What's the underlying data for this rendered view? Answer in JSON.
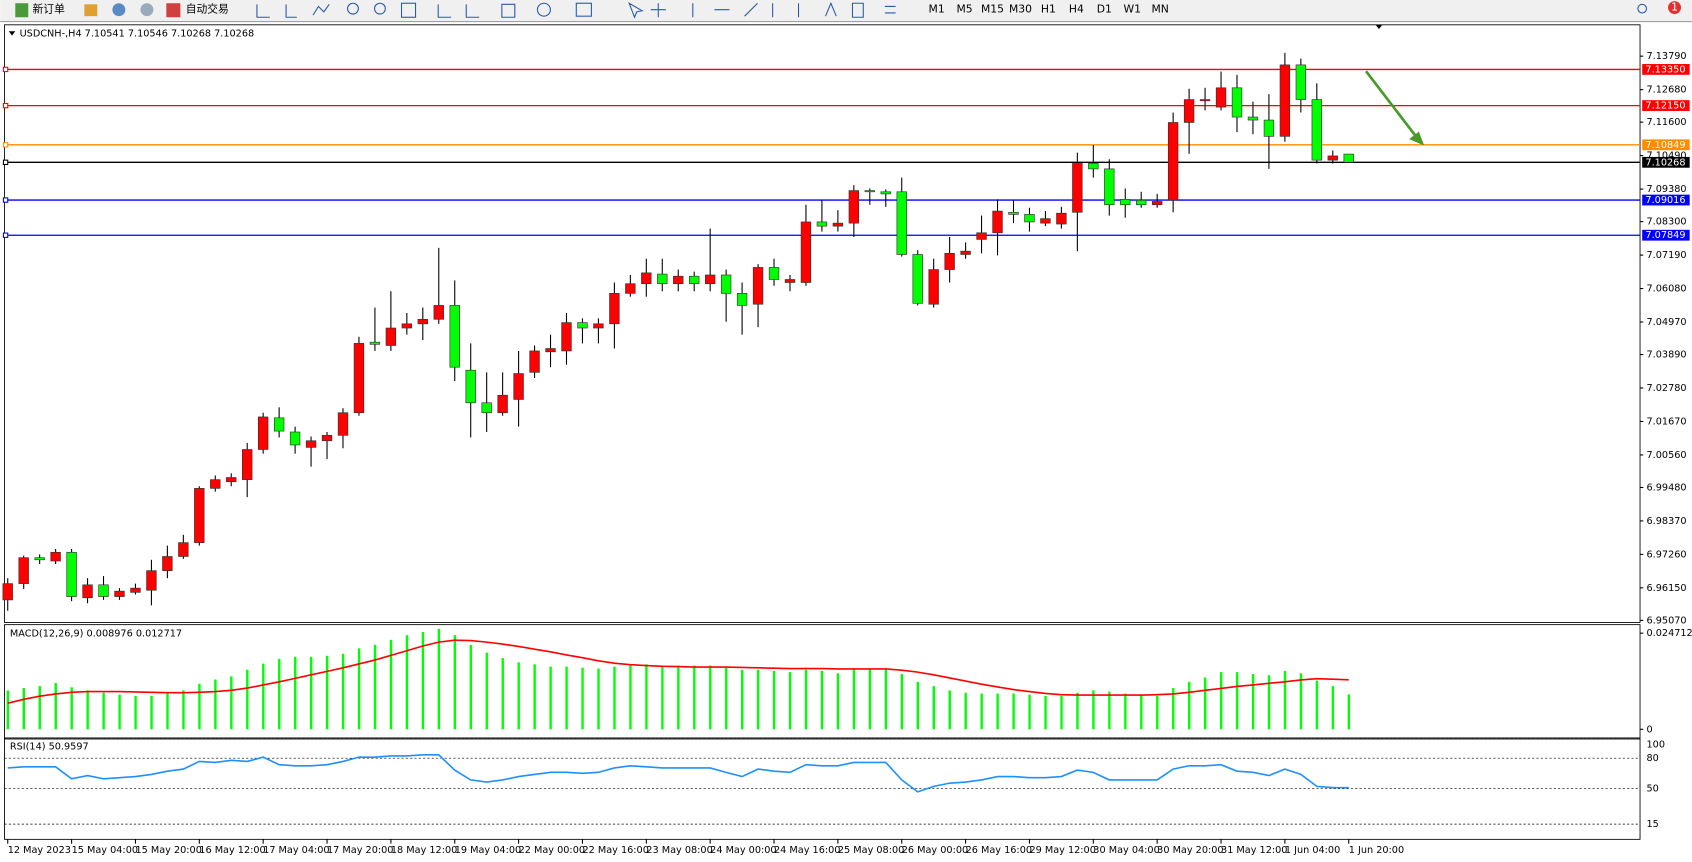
{
  "toolbar": {
    "new_order": "新订单",
    "auto_trading": "自动交易",
    "timeframes": [
      "M1",
      "M5",
      "M15",
      "M30",
      "H1",
      "H4",
      "D1",
      "W1",
      "MN"
    ],
    "badge": "1"
  },
  "chart_data": [
    {
      "type": "candlestick",
      "title": "USDCNH-,H4  7.10541 7.10546 7.10268 7.10268",
      "categories": [
        "12 May 2023",
        null,
        null,
        null,
        "15 May 04:00",
        null,
        null,
        null,
        "15 May 20:00",
        null,
        null,
        null,
        "16 May 12:00",
        null,
        null,
        null,
        "17 May 04:00",
        null,
        null,
        null,
        "17 May 20:00",
        null,
        null,
        null,
        "18 May 12:00",
        null,
        null,
        null,
        "19 May 04:00",
        null,
        null,
        null,
        "22 May 00:00",
        null,
        null,
        null,
        "22 May 16:00",
        null,
        null,
        null,
        "23 May 08:00",
        null,
        null,
        null,
        "24 May 00:00",
        null,
        null,
        null,
        "24 May 16:00",
        null,
        null,
        null,
        "25 May 08:00",
        null,
        null,
        null,
        "26 May 00:00",
        null,
        null,
        null,
        "26 May 16:00",
        null,
        null,
        null,
        "29 May 12:00",
        null,
        null,
        null,
        "30 May 04:00",
        null,
        null,
        null,
        "30 May 20:00",
        null,
        null,
        null,
        "31 May 12:00",
        null,
        null,
        null,
        "1 Jun 04:00",
        null,
        null,
        null,
        "1 Jun 20:00"
      ],
      "open": [
        6.9575,
        6.9629,
        6.9715,
        6.9704,
        6.9733,
        6.9582,
        6.9625,
        6.9586,
        6.96,
        6.9607,
        6.9672,
        6.9719,
        6.9765,
        6.9945,
        6.9967,
        6.9974,
        7.0074,
        7.0179,
        7.0132,
        7.0081,
        7.0103,
        7.0121,
        7.0196,
        7.043,
        7.0419,
        7.0477,
        7.0491,
        7.0506,
        7.0552,
        7.0337,
        7.0229,
        7.0196,
        7.024,
        7.033,
        7.0398,
        7.0401,
        7.0495,
        7.0477,
        7.0491,
        7.0592,
        7.0624,
        7.0656,
        7.0624,
        7.0649,
        7.0624,
        7.0653,
        7.0592,
        7.0556,
        7.0678,
        7.0628,
        7.0628,
        7.0829,
        7.0815,
        7.0825,
        7.0933,
        7.0929,
        7.0929,
        7.0721,
        7.0556,
        7.0671,
        7.0721,
        7.0771,
        7.0793,
        7.0861,
        7.0854,
        7.0825,
        7.0822,
        7.0861,
        7.1023,
        7.1005,
        7.0904,
        7.0901,
        7.0886,
        7.0901,
        7.1159,
        7.1231,
        7.121,
        7.1274,
        7.1177,
        7.1167,
        7.1113,
        7.135,
        7.1235,
        7.1034,
        7.10541
      ],
      "high": [
        6.9647,
        6.9722,
        6.9726,
        6.9744,
        6.9744,
        6.9647,
        6.9654,
        6.9614,
        6.9629,
        6.9708,
        6.9755,
        6.9791,
        6.9952,
        6.9988,
        6.9995,
        7.0096,
        7.0196,
        7.0214,
        7.015,
        7.0117,
        7.0132,
        7.0211,
        7.0448,
        7.0545,
        7.0599,
        7.0527,
        7.0545,
        7.0743,
        7.0635,
        7.0426,
        7.033,
        7.033,
        7.0401,
        7.0419,
        7.0455,
        7.0527,
        7.0509,
        7.0509,
        7.0628,
        7.0653,
        7.0707,
        7.0707,
        7.0671,
        7.0664,
        7.0807,
        7.0671,
        7.0628,
        7.0689,
        7.0707,
        7.0653,
        7.0886,
        7.0901,
        7.0868,
        7.0951,
        7.094,
        7.0937,
        7.0976,
        7.0735,
        7.0707,
        7.0779,
        7.0761,
        7.085,
        7.0904,
        7.0901,
        7.0876,
        7.0865,
        7.0879,
        7.1059,
        7.1084,
        7.1037,
        7.094,
        7.0929,
        7.0922,
        7.1192,
        7.1271,
        7.1274,
        7.1328,
        7.1317,
        7.1228,
        7.1253,
        7.139,
        7.1371,
        7.1289,
        7.1066,
        7.10546
      ],
      "low": [
        6.9539,
        6.9611,
        6.9694,
        6.9694,
        6.9571,
        6.9564,
        6.9575,
        6.9575,
        6.9593,
        6.9557,
        6.9647,
        6.9711,
        6.9755,
        6.9934,
        6.9952,
        6.9916,
        7.006,
        7.0114,
        7.006,
        7.0017,
        7.0042,
        7.0078,
        7.0186,
        7.0401,
        7.0401,
        7.0455,
        7.0437,
        7.0491,
        7.0301,
        7.0114,
        7.0132,
        7.0186,
        7.015,
        7.0311,
        7.0347,
        7.0355,
        7.0426,
        7.0426,
        7.0409,
        7.0581,
        7.0581,
        7.0599,
        7.0599,
        7.0599,
        7.0599,
        7.0498,
        7.0455,
        7.048,
        7.0617,
        7.0599,
        7.0617,
        7.0797,
        7.0797,
        7.0779,
        7.0886,
        7.0879,
        7.0714,
        7.0552,
        7.0545,
        7.0628,
        7.0707,
        7.0725,
        7.0718,
        7.0825,
        7.0797,
        7.0815,
        7.0807,
        7.0732,
        7.0976,
        7.085,
        7.0843,
        7.0876,
        7.0876,
        7.0861,
        7.1055,
        7.1199,
        7.1199,
        7.1127,
        7.112,
        7.1005,
        7.1095,
        7.1192,
        7.1023,
        7.1023,
        7.10268
      ],
      "close": [
        6.9629,
        6.9715,
        6.9708,
        6.9733,
        6.9586,
        6.9625,
        6.9586,
        6.9604,
        6.9614,
        6.9672,
        6.9719,
        6.9765,
        6.9945,
        6.9974,
        6.9981,
        7.0074,
        7.0182,
        7.0135,
        7.0089,
        7.0103,
        7.0121,
        7.0196,
        7.0426,
        7.0423,
        7.0477,
        7.0491,
        7.0506,
        7.0552,
        7.0347,
        7.0229,
        7.0196,
        7.0254,
        7.0326,
        7.0401,
        7.0409,
        7.0495,
        7.0477,
        7.0491,
        7.0592,
        7.0624,
        7.066,
        7.0624,
        7.0649,
        7.0624,
        7.0653,
        7.0592,
        7.0552,
        7.0678,
        7.0638,
        7.0638,
        7.0829,
        7.0815,
        7.0825,
        7.0933,
        7.0929,
        7.0922,
        7.0721,
        7.0559,
        7.0671,
        7.0725,
        7.0732,
        7.0793,
        7.0865,
        7.0854,
        7.0829,
        7.084,
        7.0858,
        7.1023,
        7.1005,
        7.0886,
        7.0886,
        7.0886,
        7.0897,
        7.1159,
        7.1235,
        7.1235,
        7.1274,
        7.1177,
        7.1167,
        7.1113,
        7.135,
        7.1235,
        7.1034,
        7.1048,
        7.10268
      ],
      "up_color": "#ff0000",
      "down_color": "#00ff00",
      "wick_color": "#000000",
      "ylim": [
        6.95,
        7.1483
      ],
      "yticks": [
        {
          "value": 7.1379,
          "label": "7.13790"
        },
        {
          "value": 7.1268,
          "label": "7.12680"
        },
        {
          "value": 7.116,
          "label": "7.11600"
        },
        {
          "value": 7.1049,
          "label": "7.10490"
        },
        {
          "value": 7.0938,
          "label": "7.09380"
        },
        {
          "value": 7.083,
          "label": "7.08300"
        },
        {
          "value": 7.0719,
          "label": "7.07190"
        },
        {
          "value": 7.0608,
          "label": "7.06080"
        },
        {
          "value": 7.0497,
          "label": "7.04970"
        },
        {
          "value": 7.0389,
          "label": "7.03890"
        },
        {
          "value": 7.0278,
          "label": "7.02780"
        },
        {
          "value": 7.0167,
          "label": "7.01670"
        },
        {
          "value": 7.0056,
          "label": "7.00560"
        },
        {
          "value": 6.9948,
          "label": "6.99480"
        },
        {
          "value": 6.9837,
          "label": "6.98370"
        },
        {
          "value": 6.9726,
          "label": "6.97260"
        },
        {
          "value": 6.9615,
          "label": "6.96150"
        },
        {
          "value": 6.9507,
          "label": "6.95070"
        }
      ],
      "levels": [
        {
          "value": 7.1335,
          "label": "7.13350",
          "color": "#ff0000"
        },
        {
          "value": 7.1215,
          "label": "7.12150",
          "color": "#ff0000"
        },
        {
          "value": 7.10849,
          "label": "7.10849",
          "color": "#ff8c00"
        },
        {
          "value": 7.10268,
          "label": "7.10268",
          "color": "#000000"
        },
        {
          "value": 7.09016,
          "label": "7.09016",
          "color": "#0000ff"
        },
        {
          "value": 7.07849,
          "label": "7.07849",
          "color": "#0000ff"
        }
      ]
    },
    {
      "type": "macd",
      "title": "MACD(12,26,9) 0.008976 0.012717",
      "series": [
        {
          "style": "bar",
          "color": "#00ff00",
          "values": [
            0.01,
            0.0106,
            0.0111,
            0.0119,
            0.0108,
            0.01,
            0.0094,
            0.0089,
            0.0086,
            0.0086,
            0.0092,
            0.01,
            0.0117,
            0.0128,
            0.0136,
            0.0153,
            0.0169,
            0.0181,
            0.0186,
            0.0186,
            0.0189,
            0.0194,
            0.0208,
            0.0217,
            0.023,
            0.0242,
            0.025,
            0.0258,
            0.0242,
            0.0217,
            0.0197,
            0.0183,
            0.0172,
            0.0167,
            0.0161,
            0.0161,
            0.0158,
            0.0156,
            0.0161,
            0.0164,
            0.0167,
            0.0164,
            0.0164,
            0.0164,
            0.0164,
            0.0158,
            0.0153,
            0.0153,
            0.015,
            0.0147,
            0.0153,
            0.015,
            0.0144,
            0.0156,
            0.0156,
            0.0156,
            0.0142,
            0.0122,
            0.0111,
            0.01,
            0.0094,
            0.0092,
            0.0092,
            0.0092,
            0.0089,
            0.0086,
            0.0086,
            0.0094,
            0.01,
            0.0097,
            0.0092,
            0.0089,
            0.0086,
            0.0106,
            0.0122,
            0.0133,
            0.0147,
            0.0147,
            0.0142,
            0.0139,
            0.015,
            0.0144,
            0.0125,
            0.0111,
            0.008976
          ]
        },
        {
          "style": "line",
          "color": "#ff0000",
          "values": [
            0.0067,
            0.0077,
            0.0085,
            0.0091,
            0.0095,
            0.0097,
            0.0097,
            0.0097,
            0.0096,
            0.0095,
            0.0094,
            0.0094,
            0.0095,
            0.0097,
            0.01,
            0.0106,
            0.0114,
            0.0122,
            0.0131,
            0.014,
            0.0149,
            0.0158,
            0.0168,
            0.0178,
            0.019,
            0.0202,
            0.0214,
            0.0224,
            0.0229,
            0.0228,
            0.0224,
            0.0219,
            0.0213,
            0.0206,
            0.0199,
            0.0191,
            0.0184,
            0.0176,
            0.017,
            0.0166,
            0.0164,
            0.0162,
            0.0161,
            0.016,
            0.016,
            0.016,
            0.0159,
            0.0158,
            0.0157,
            0.0156,
            0.0156,
            0.0156,
            0.0155,
            0.0155,
            0.0155,
            0.0155,
            0.0152,
            0.0147,
            0.014,
            0.0132,
            0.0124,
            0.0116,
            0.0109,
            0.0102,
            0.0097,
            0.0092,
            0.0089,
            0.0088,
            0.0088,
            0.0088,
            0.0088,
            0.0088,
            0.0089,
            0.0091,
            0.0095,
            0.01,
            0.0105,
            0.011,
            0.0114,
            0.0118,
            0.0122,
            0.0127,
            0.013,
            0.0129,
            0.012717
          ]
        }
      ],
      "ylim": [
        -0.0025,
        0.0269
      ],
      "yticks": [
        0.024712,
        0
      ]
    },
    {
      "type": "line",
      "title": "RSI(14) 50.9597",
      "series": [
        {
          "color": "#1e90ff",
          "values": [
            70.4,
            71.5,
            71.5,
            71.5,
            59.7,
            62.9,
            59.7,
            60.8,
            61.9,
            64.0,
            67.2,
            69.3,
            76.8,
            75.8,
            77.9,
            76.8,
            81.1,
            73.6,
            72.6,
            72.6,
            73.6,
            76.8,
            81.1,
            81.1,
            82.2,
            82.2,
            83.3,
            83.3,
            68.3,
            58.6,
            56.5,
            58.6,
            61.9,
            64.0,
            66.1,
            66.1,
            65.1,
            66.1,
            70.4,
            72.6,
            71.5,
            70.4,
            70.4,
            70.4,
            70.4,
            66.1,
            61.9,
            69.3,
            67.2,
            66.1,
            73.6,
            72.6,
            72.6,
            75.8,
            75.8,
            75.8,
            58.6,
            46.8,
            52.2,
            55.4,
            56.5,
            58.6,
            61.9,
            61.9,
            60.8,
            60.8,
            61.9,
            68.3,
            66.1,
            58.6,
            58.6,
            58.6,
            58.6,
            69.3,
            72.6,
            72.6,
            73.6,
            67.2,
            66.1,
            62.9,
            69.3,
            64.0,
            52.2,
            51.1,
            50.9597
          ]
        }
      ],
      "ylim": [
        0,
        100
      ],
      "yticks": [
        100,
        80,
        50,
        15
      ],
      "grid": "dotted"
    }
  ]
}
